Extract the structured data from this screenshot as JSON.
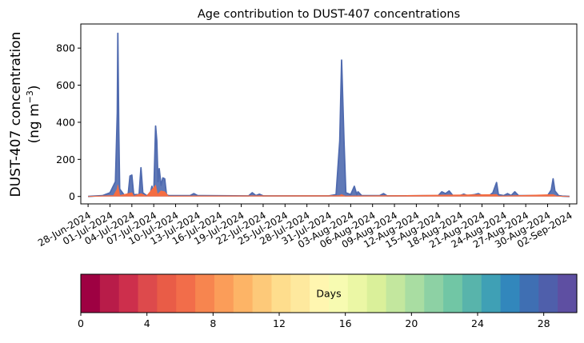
{
  "chart_data": {
    "type": "area",
    "title": "Age contribution to DUST-407 concentrations",
    "ylabel_line1": "DUST-407 concentration",
    "ylabel_line2_prefix": "(ng m",
    "ylabel_line2_sup": "−3",
    "ylabel_line2_suffix": ")",
    "xlabel": "",
    "ylim": [
      -40,
      930
    ],
    "yticks": [
      0,
      200,
      400,
      600,
      800
    ],
    "xlim": [
      "2024-06-27",
      "2024-09-03"
    ],
    "xtick_labels": [
      "28-Jun-2024",
      "01-Jul-2024",
      "04-Jul-2024",
      "07-Jul-2024",
      "10-Jul-2024",
      "13-Jul-2024",
      "16-Jul-2024",
      "19-Jul-2024",
      "22-Jul-2024",
      "25-Jul-2024",
      "28-Jul-2024",
      "31-Jul-2024",
      "03-Aug-2024",
      "06-Aug-2024",
      "09-Aug-2024",
      "12-Aug-2024",
      "15-Aug-2024",
      "18-Aug-2024",
      "21-Aug-2024",
      "24-Aug-2024",
      "27-Aug-2024",
      "30-Aug-2024",
      "02-Sep-2024"
    ],
    "series": [
      {
        "color": "#4f6aaf",
        "points": [
          [
            "2024-06-28T00:00",
            0
          ],
          [
            "2024-06-30T00:00",
            5
          ],
          [
            "2024-07-01T00:00",
            20
          ],
          [
            "2024-07-01T18:00",
            80
          ],
          [
            "2024-07-02T00:00",
            450
          ],
          [
            "2024-07-02T02:00",
            880
          ],
          [
            "2024-07-02T05:00",
            350
          ],
          [
            "2024-07-02T08:00",
            40
          ],
          [
            "2024-07-03T00:00",
            5
          ],
          [
            "2024-07-03T12:00",
            15
          ],
          [
            "2024-07-03T18:00",
            110
          ],
          [
            "2024-07-04T00:00",
            115
          ],
          [
            "2024-07-04T06:00",
            10
          ],
          [
            "2024-07-05T00:00",
            10
          ],
          [
            "2024-07-05T06:00",
            155
          ],
          [
            "2024-07-05T12:00",
            20
          ],
          [
            "2024-07-06T00:00",
            5
          ],
          [
            "2024-07-06T12:00",
            10
          ],
          [
            "2024-07-06T18:00",
            55
          ],
          [
            "2024-07-07T00:00",
            10
          ],
          [
            "2024-07-07T06:00",
            380
          ],
          [
            "2024-07-07T10:00",
            300
          ],
          [
            "2024-07-07T14:00",
            80
          ],
          [
            "2024-07-07T18:00",
            150
          ],
          [
            "2024-07-08T00:00",
            60
          ],
          [
            "2024-07-08T06:00",
            100
          ],
          [
            "2024-07-08T12:00",
            95
          ],
          [
            "2024-07-08T18:00",
            10
          ],
          [
            "2024-07-09T00:00",
            5
          ],
          [
            "2024-07-12T00:00",
            5
          ],
          [
            "2024-07-12T12:00",
            15
          ],
          [
            "2024-07-13T00:00",
            5
          ],
          [
            "2024-07-20T00:00",
            3
          ],
          [
            "2024-07-20T12:00",
            20
          ],
          [
            "2024-07-21T00:00",
            5
          ],
          [
            "2024-07-21T12:00",
            12
          ],
          [
            "2024-07-22T00:00",
            3
          ],
          [
            "2024-07-31T00:00",
            3
          ],
          [
            "2024-08-01T00:00",
            10
          ],
          [
            "2024-08-01T12:00",
            300
          ],
          [
            "2024-08-01T18:00",
            735
          ],
          [
            "2024-08-02T02:00",
            300
          ],
          [
            "2024-08-02T08:00",
            20
          ],
          [
            "2024-08-03T00:00",
            10
          ],
          [
            "2024-08-03T12:00",
            55
          ],
          [
            "2024-08-03T20:00",
            10
          ],
          [
            "2024-08-04T00:00",
            25
          ],
          [
            "2024-08-04T12:00",
            5
          ],
          [
            "2024-08-07T00:00",
            5
          ],
          [
            "2024-08-07T12:00",
            15
          ],
          [
            "2024-08-08T00:00",
            3
          ],
          [
            "2024-08-15T00:00",
            5
          ],
          [
            "2024-08-15T12:00",
            25
          ],
          [
            "2024-08-16T00:00",
            15
          ],
          [
            "2024-08-16T12:00",
            30
          ],
          [
            "2024-08-17T00:00",
            5
          ],
          [
            "2024-08-18T00:00",
            5
          ],
          [
            "2024-08-18T12:00",
            12
          ],
          [
            "2024-08-19T00:00",
            5
          ],
          [
            "2024-08-20T00:00",
            10
          ],
          [
            "2024-08-20T12:00",
            15
          ],
          [
            "2024-08-21T00:00",
            5
          ],
          [
            "2024-08-22T00:00",
            5
          ],
          [
            "2024-08-22T12:00",
            20
          ],
          [
            "2024-08-23T00:00",
            75
          ],
          [
            "2024-08-23T06:00",
            10
          ],
          [
            "2024-08-24T00:00",
            5
          ],
          [
            "2024-08-24T12:00",
            15
          ],
          [
            "2024-08-25T00:00",
            5
          ],
          [
            "2024-08-25T12:00",
            25
          ],
          [
            "2024-08-26T00:00",
            5
          ],
          [
            "2024-08-30T00:00",
            5
          ],
          [
            "2024-08-30T12:00",
            35
          ],
          [
            "2024-08-30T18:00",
            95
          ],
          [
            "2024-08-31T00:00",
            30
          ],
          [
            "2024-08-31T12:00",
            5
          ],
          [
            "2024-09-01T00:00",
            2
          ],
          [
            "2024-09-02T00:00",
            0
          ]
        ]
      },
      {
        "color": "#f46d43",
        "points": [
          [
            "2024-06-28T00:00",
            0
          ],
          [
            "2024-07-01T12:00",
            5
          ],
          [
            "2024-07-02T00:00",
            40
          ],
          [
            "2024-07-02T02:00",
            60
          ],
          [
            "2024-07-02T08:00",
            5
          ],
          [
            "2024-07-04T00:00",
            20
          ],
          [
            "2024-07-04T06:00",
            2
          ],
          [
            "2024-07-05T06:00",
            15
          ],
          [
            "2024-07-06T00:00",
            2
          ],
          [
            "2024-07-07T06:00",
            60
          ],
          [
            "2024-07-07T12:00",
            10
          ],
          [
            "2024-07-08T00:00",
            30
          ],
          [
            "2024-07-08T12:00",
            25
          ],
          [
            "2024-07-09T00:00",
            2
          ],
          [
            "2024-08-01T12:00",
            5
          ],
          [
            "2024-08-01T18:00",
            10
          ],
          [
            "2024-08-02T06:00",
            2
          ],
          [
            "2024-08-23T00:00",
            10
          ],
          [
            "2024-08-23T06:00",
            2
          ],
          [
            "2024-08-30T18:00",
            10
          ],
          [
            "2024-08-31T06:00",
            2
          ],
          [
            "2024-09-02T00:00",
            0
          ]
        ]
      }
    ],
    "colorbar": {
      "label": "Days",
      "min": 0,
      "max": 30,
      "ticks": [
        0,
        4,
        8,
        12,
        16,
        20,
        24,
        28
      ],
      "colors": [
        "#9e0142",
        "#b81c49",
        "#cd2f4c",
        "#dd4a4c",
        "#e95c47",
        "#f26d4a",
        "#f7854f",
        "#fb9d59",
        "#fdb466",
        "#fdc979",
        "#fedd8d",
        "#fee99e",
        "#fff6b0",
        "#f7fbb1",
        "#ebf7a5",
        "#daf09a",
        "#c3e79e",
        "#a9dda2",
        "#8dd1a4",
        "#71c6a5",
        "#58b4ab",
        "#3fa0b5",
        "#3287bc",
        "#3f6fb3",
        "#4f5fab",
        "#5e4fa2"
      ]
    }
  }
}
